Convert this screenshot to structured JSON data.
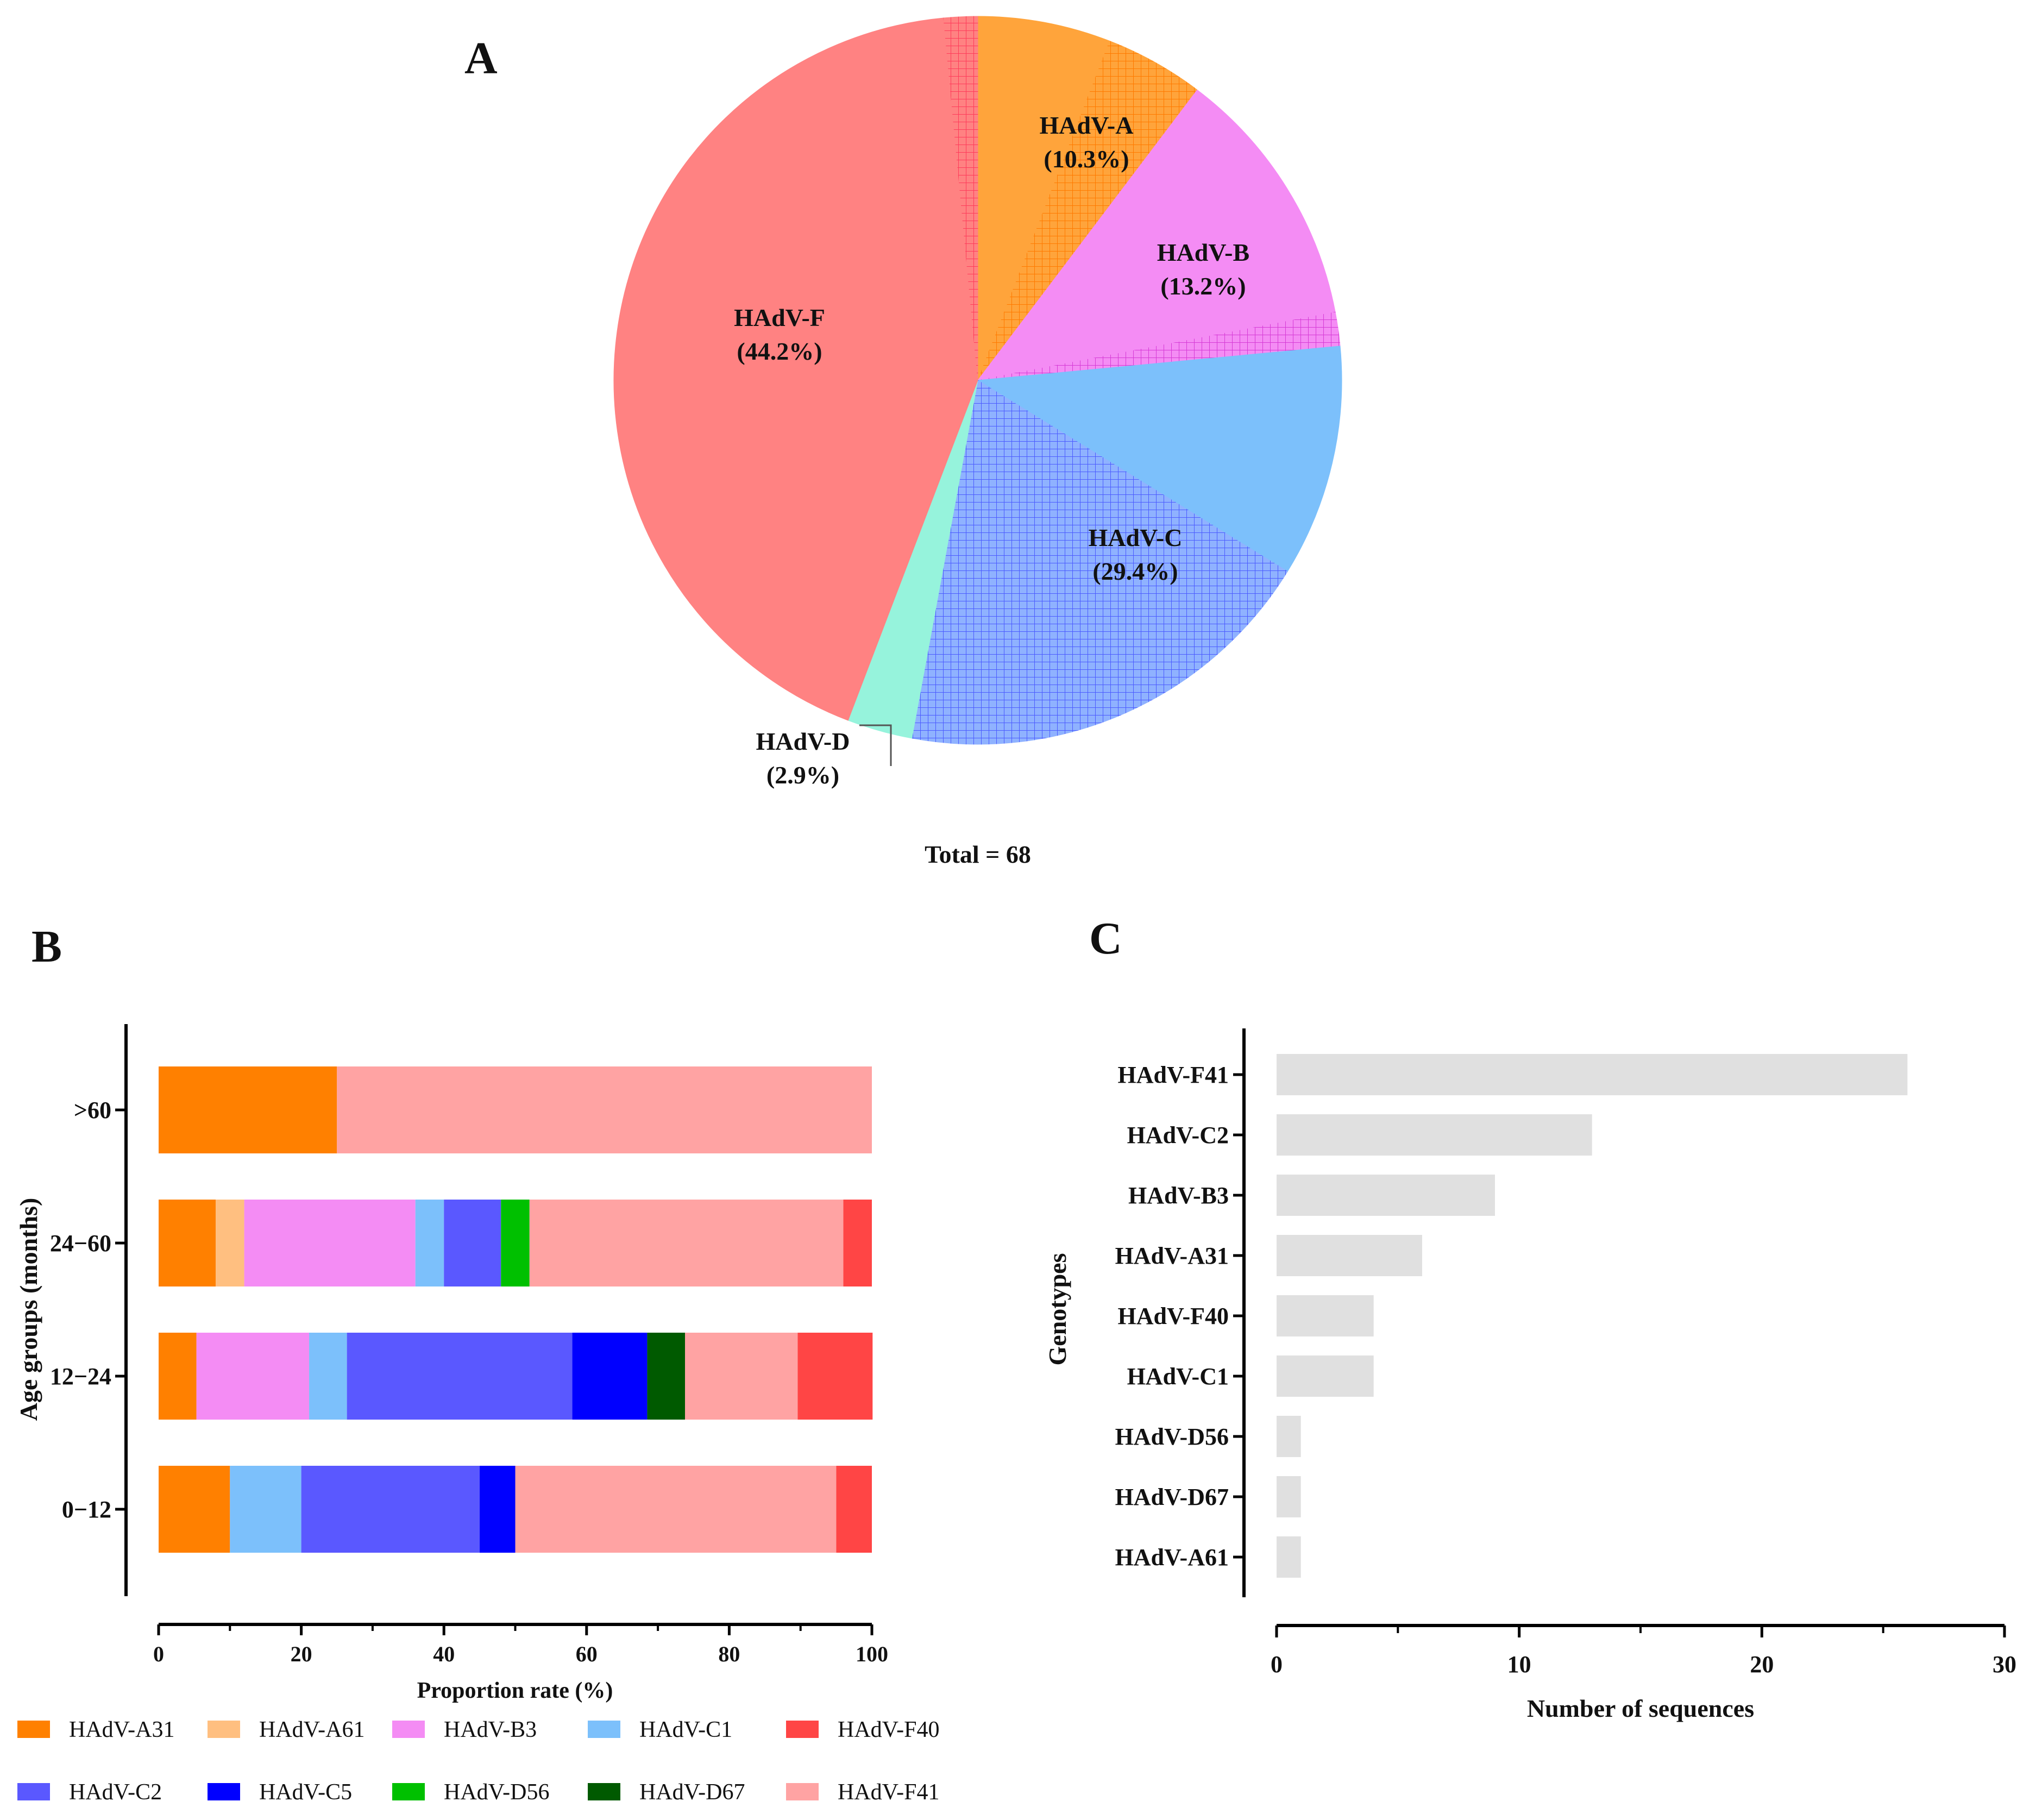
{
  "panels": {
    "a": "A",
    "b": "B",
    "c": "C"
  },
  "colors": {
    "HAdV-A": "#ffa43b",
    "HAdV-B": "#f48cf4",
    "HAdV-C": "#7cc0fb",
    "HAdV-D": "#96f3dc",
    "HAdV-F": "#ff8282",
    "HAdV-A31": "#ff8000",
    "HAdV-A61": "#ffbf80",
    "HAdV-B3": "#f48cf4",
    "HAdV-C1": "#7cc0fb",
    "HAdV-F40": "#ff4545",
    "HAdV-C2": "#5a58ff",
    "HAdV-C5": "#0000ff",
    "HAdV-D56": "#00c000",
    "HAdV-D67": "#005a00",
    "HAdV-F41": "#ffa3a3",
    "barC": "#e0e0e0"
  },
  "chart_data": [
    {
      "id": "A",
      "type": "pie",
      "total_label": "Total = 68",
      "slices": [
        {
          "name": "HAdV-A",
          "label": "HAdV-A",
          "pct_label": "(10.3%)",
          "value": 10.3,
          "hatched_part": 4.4
        },
        {
          "name": "HAdV-B",
          "label": "HAdV-B",
          "pct_label": "(13.2%)",
          "value": 13.2,
          "hatched_part": 1.5
        },
        {
          "name": "HAdV-C",
          "label": "HAdV-C",
          "pct_label": "(29.4%)",
          "value": 29.4,
          "hatched_part": 19.1
        },
        {
          "name": "HAdV-D",
          "label": "HAdV-D",
          "pct_label": "(2.9%)",
          "value": 2.9,
          "hatched_part": 0
        },
        {
          "name": "HAdV-F",
          "label": "HAdV-F",
          "pct_label": "(44.2%)",
          "value": 44.2,
          "hatched_part": 1.5
        }
      ]
    },
    {
      "id": "B",
      "type": "bar",
      "orientation": "horizontal",
      "stacked": true,
      "xlabel": "Proportion rate (%)",
      "ylabel": "Age groups (months)",
      "xlim": [
        0,
        100
      ],
      "xticks": [
        "0",
        "20",
        "40",
        "60",
        "80",
        "100"
      ],
      "categories": [
        ">60",
        "24−60",
        "12−24",
        "0−12"
      ],
      "series": [
        {
          "name": "HAdV-A31",
          "values": [
            25,
            8,
            5.3,
            10
          ]
        },
        {
          "name": "HAdV-A61",
          "values": [
            0,
            4,
            0,
            0
          ]
        },
        {
          "name": "HAdV-B3",
          "values": [
            0,
            24,
            15.8,
            0
          ]
        },
        {
          "name": "HAdV-C1",
          "values": [
            0,
            4,
            5.3,
            10
          ]
        },
        {
          "name": "HAdV-C2",
          "values": [
            0,
            8,
            31.6,
            25
          ]
        },
        {
          "name": "HAdV-C5",
          "values": [
            0,
            0,
            10.5,
            5
          ]
        },
        {
          "name": "HAdV-D56",
          "values": [
            0,
            4,
            0,
            0
          ]
        },
        {
          "name": "HAdV-D67",
          "values": [
            0,
            0,
            5.3,
            0
          ]
        },
        {
          "name": "HAdV-F41",
          "values": [
            75,
            44,
            15.8,
            45
          ]
        },
        {
          "name": "HAdV-F40",
          "values": [
            0,
            4,
            10.5,
            5
          ]
        }
      ],
      "legend": [
        [
          "HAdV-A31",
          "HAdV-A61",
          "HAdV-B3",
          "HAdV-C1",
          "HAdV-F40"
        ],
        [
          "HAdV-C2",
          "HAdV-C5",
          "HAdV-D56",
          "HAdV-D67",
          "HAdV-F41"
        ]
      ]
    },
    {
      "id": "C",
      "type": "bar",
      "orientation": "horizontal",
      "xlabel": "Number of sequences",
      "ylabel": "Genotypes",
      "xlim": [
        0,
        30
      ],
      "xticks": [
        "0",
        "10",
        "20",
        "30"
      ],
      "categories": [
        "HAdV-F41",
        "HAdV-C2",
        "HAdV-B3",
        "HAdV-A31",
        "HAdV-F40",
        "HAdV-C1",
        "HAdV-D56",
        "HAdV-D67",
        "HAdV-A61"
      ],
      "values": [
        26,
        13,
        9,
        6,
        4,
        4,
        1,
        1,
        1
      ]
    }
  ]
}
